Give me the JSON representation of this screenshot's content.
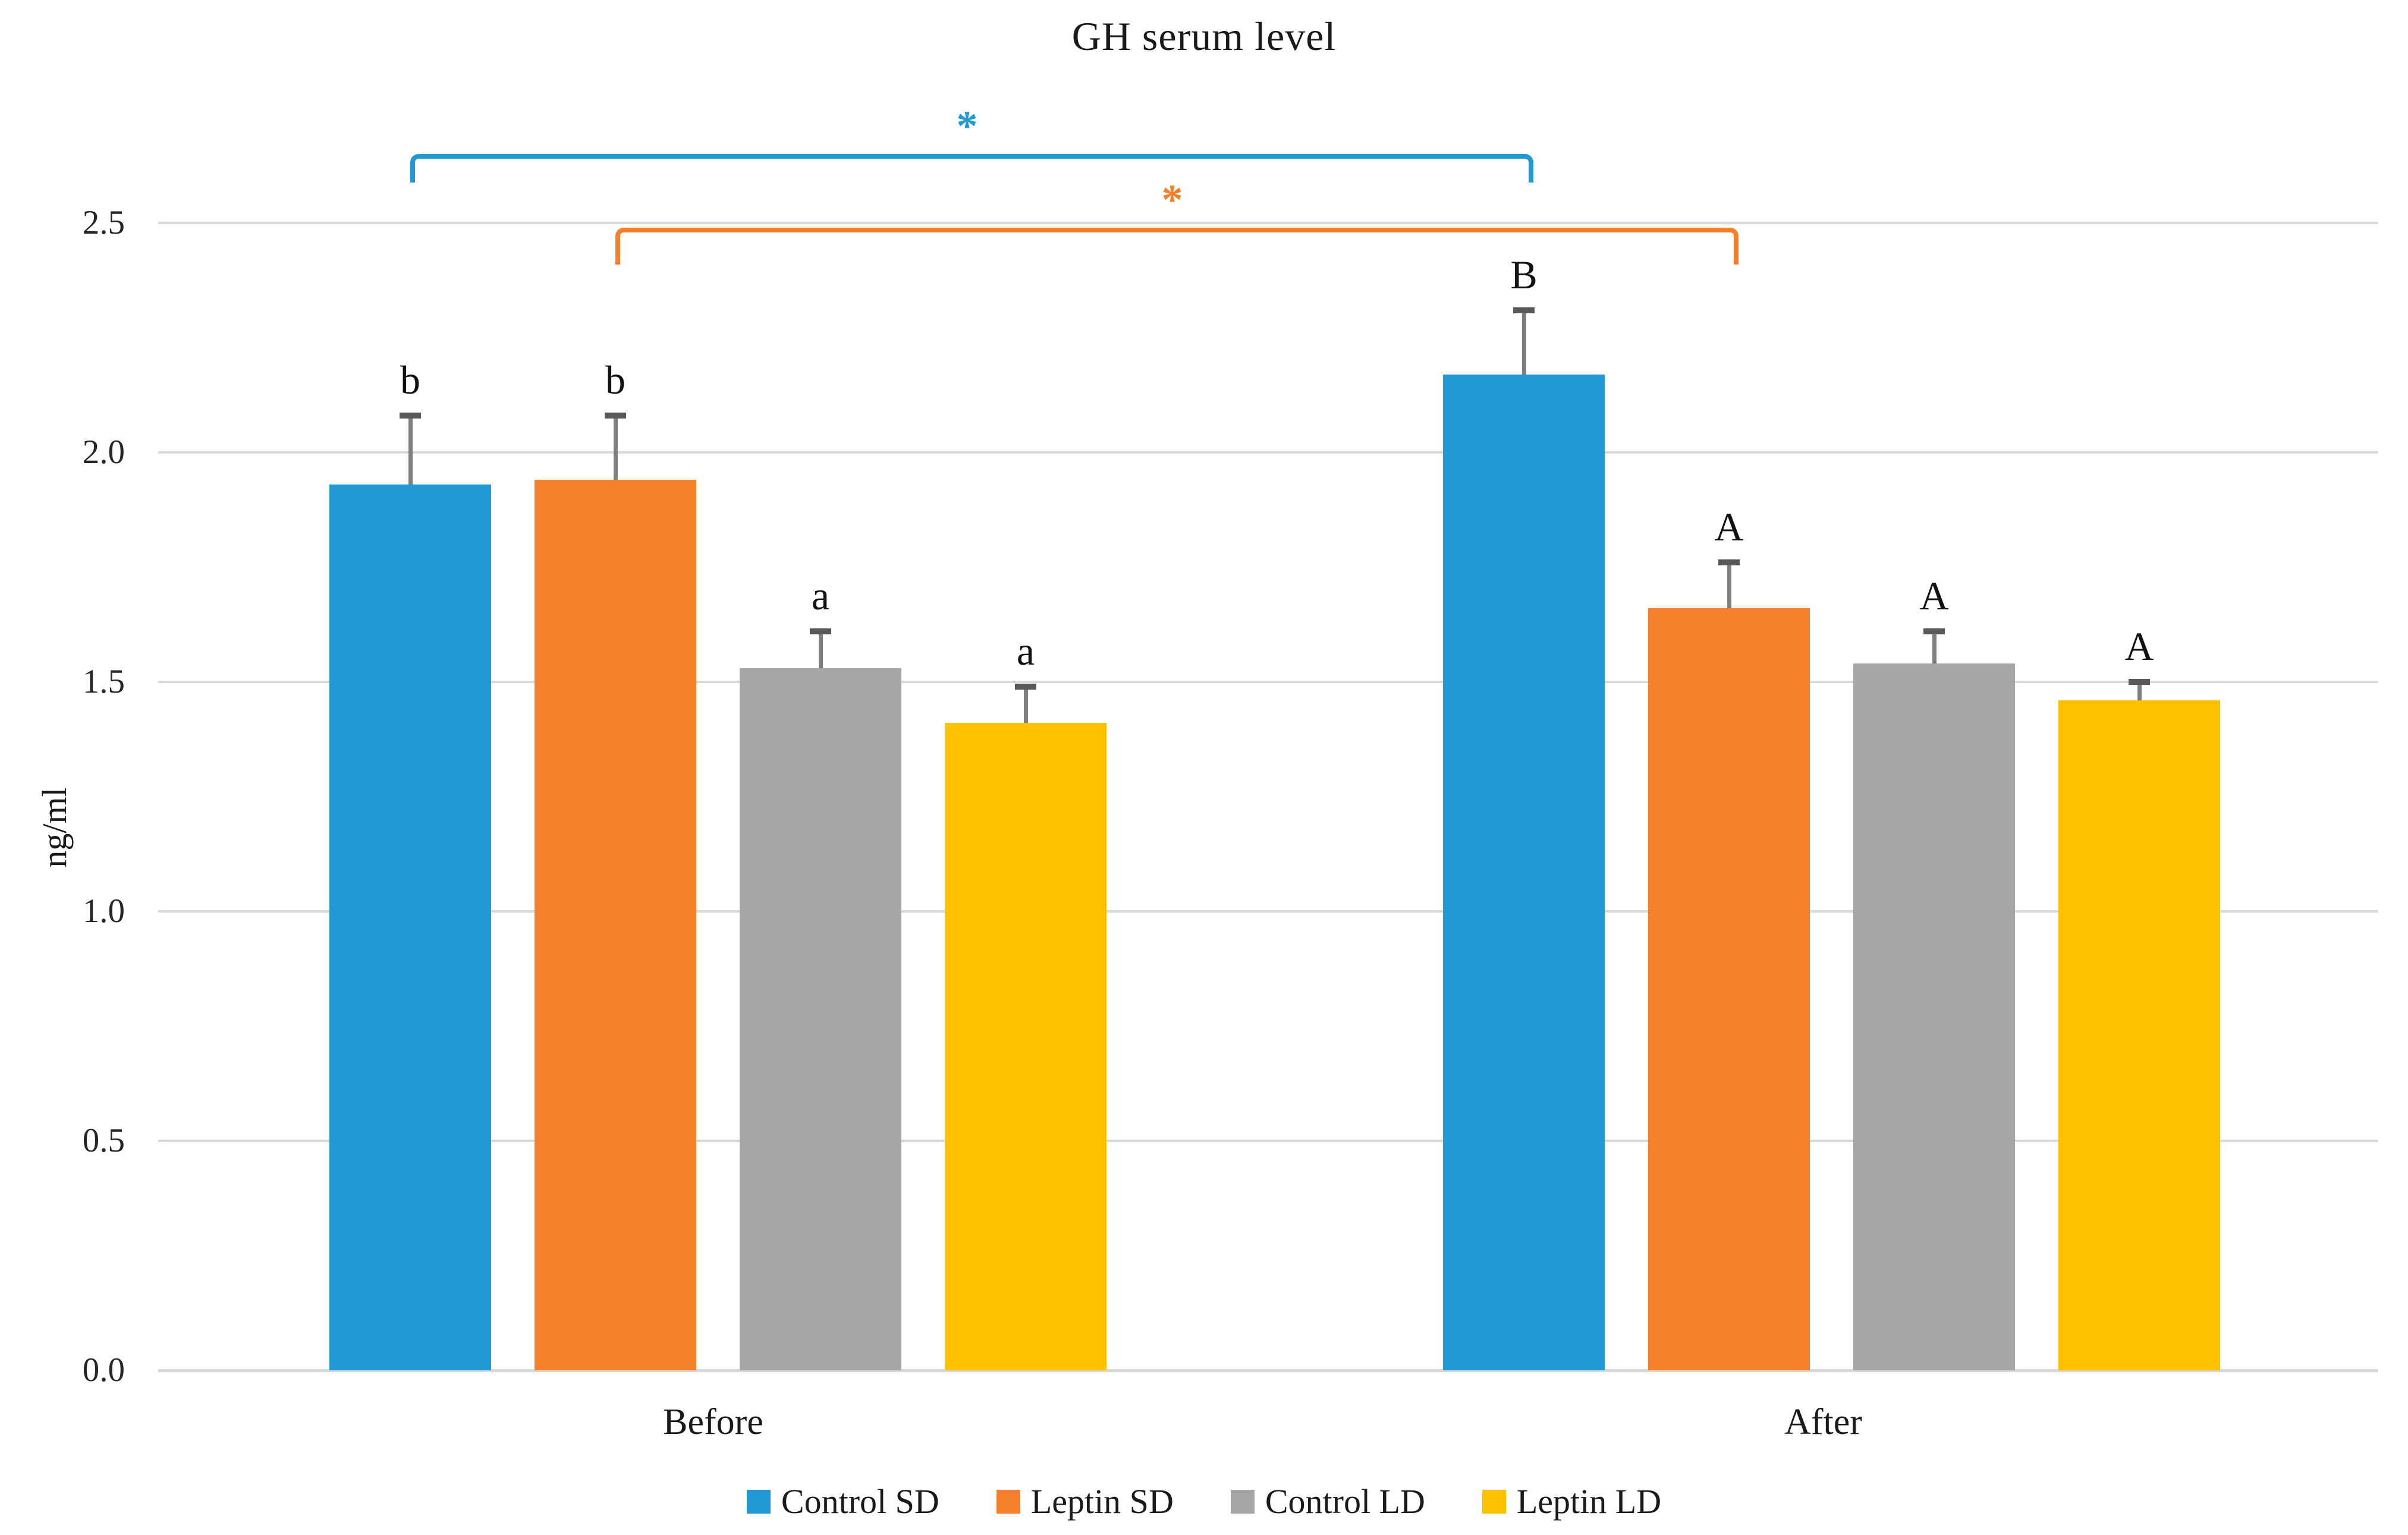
{
  "chart_data": {
    "type": "bar",
    "title": "GH serum level",
    "ylabel": "ng/ml",
    "ylim": [
      0,
      2.5
    ],
    "ytick_step": 0.5,
    "yticks": [
      {
        "value": 0.0,
        "label": "0.0"
      },
      {
        "value": 0.5,
        "label": "0.5"
      },
      {
        "value": 1.0,
        "label": "1.0"
      },
      {
        "value": 1.5,
        "label": "1.5"
      },
      {
        "value": 2.0,
        "label": "2.0"
      },
      {
        "value": 2.5,
        "label": "2.5"
      }
    ],
    "categories": [
      "Before",
      "After"
    ],
    "series": [
      {
        "name": "Control SD",
        "color": "#2099D5",
        "values": [
          1.93,
          2.17
        ],
        "errors": [
          0.15,
          0.14
        ],
        "letters": [
          "b",
          "B"
        ]
      },
      {
        "name": "Leptin SD",
        "color": "#F57F2B",
        "values": [
          1.94,
          1.66
        ],
        "errors": [
          0.14,
          0.1
        ],
        "letters": [
          "b",
          "A"
        ]
      },
      {
        "name": "Control LD",
        "color": "#A6A6A6",
        "values": [
          1.53,
          1.54
        ],
        "errors": [
          0.08,
          0.07
        ],
        "letters": [
          "a",
          "A"
        ]
      },
      {
        "name": "Leptin LD",
        "color": "#FFC000",
        "values": [
          1.41,
          1.46
        ],
        "errors": [
          0.08,
          0.04
        ],
        "letters": [
          "a",
          "A"
        ]
      }
    ],
    "annotations": {
      "brackets": [
        {
          "series": "Control SD",
          "label": "*",
          "color": "#2099D5",
          "y": 2.65,
          "drop": 0.051,
          "connects": [
            "Before",
            "After"
          ]
        },
        {
          "series": "Leptin SD",
          "label": "*",
          "color": "#F57F2B",
          "y": 2.49,
          "drop": 0.07,
          "connects": [
            "Before",
            "After"
          ]
        }
      ]
    },
    "legend_position": "bottom",
    "grid": true,
    "gridline_color": "#D9D9D9",
    "error_bar_color": "#7F7F7F",
    "error_cap_color": "#595959"
  }
}
